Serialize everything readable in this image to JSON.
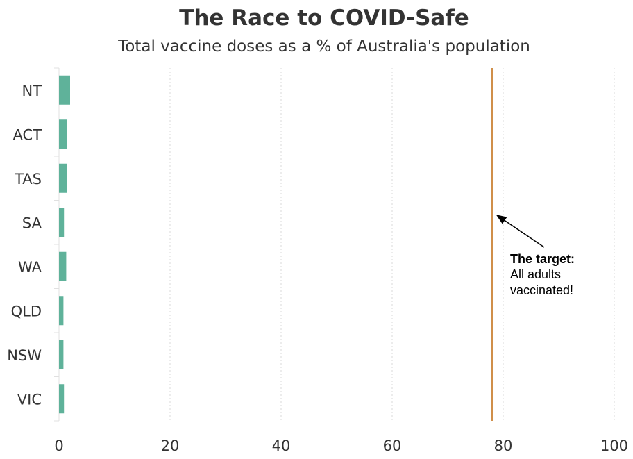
{
  "chart_data": {
    "type": "bar",
    "orientation": "horizontal",
    "title": "The Race to COVID-Safe",
    "subtitle": "Total vaccine doses as a % of Australia's population",
    "categories": [
      "NT",
      "ACT",
      "TAS",
      "SA",
      "WA",
      "QLD",
      "NSW",
      "VIC"
    ],
    "values": [
      2.0,
      1.5,
      1.5,
      0.9,
      1.3,
      0.8,
      0.8,
      0.9
    ],
    "xlim": [
      0,
      100
    ],
    "xticks": [
      "0",
      "20",
      "40",
      "60",
      "80",
      "100"
    ],
    "xlabel": "",
    "ylabel": "",
    "grid": "vertical dotted",
    "legend": "none",
    "bar_color": "#5fb29a",
    "target_line": {
      "value": 78,
      "color": "#d08f4a",
      "annotation_title": "The target:",
      "annotation_lines": [
        "All adults",
        "vaccinated!"
      ]
    }
  }
}
